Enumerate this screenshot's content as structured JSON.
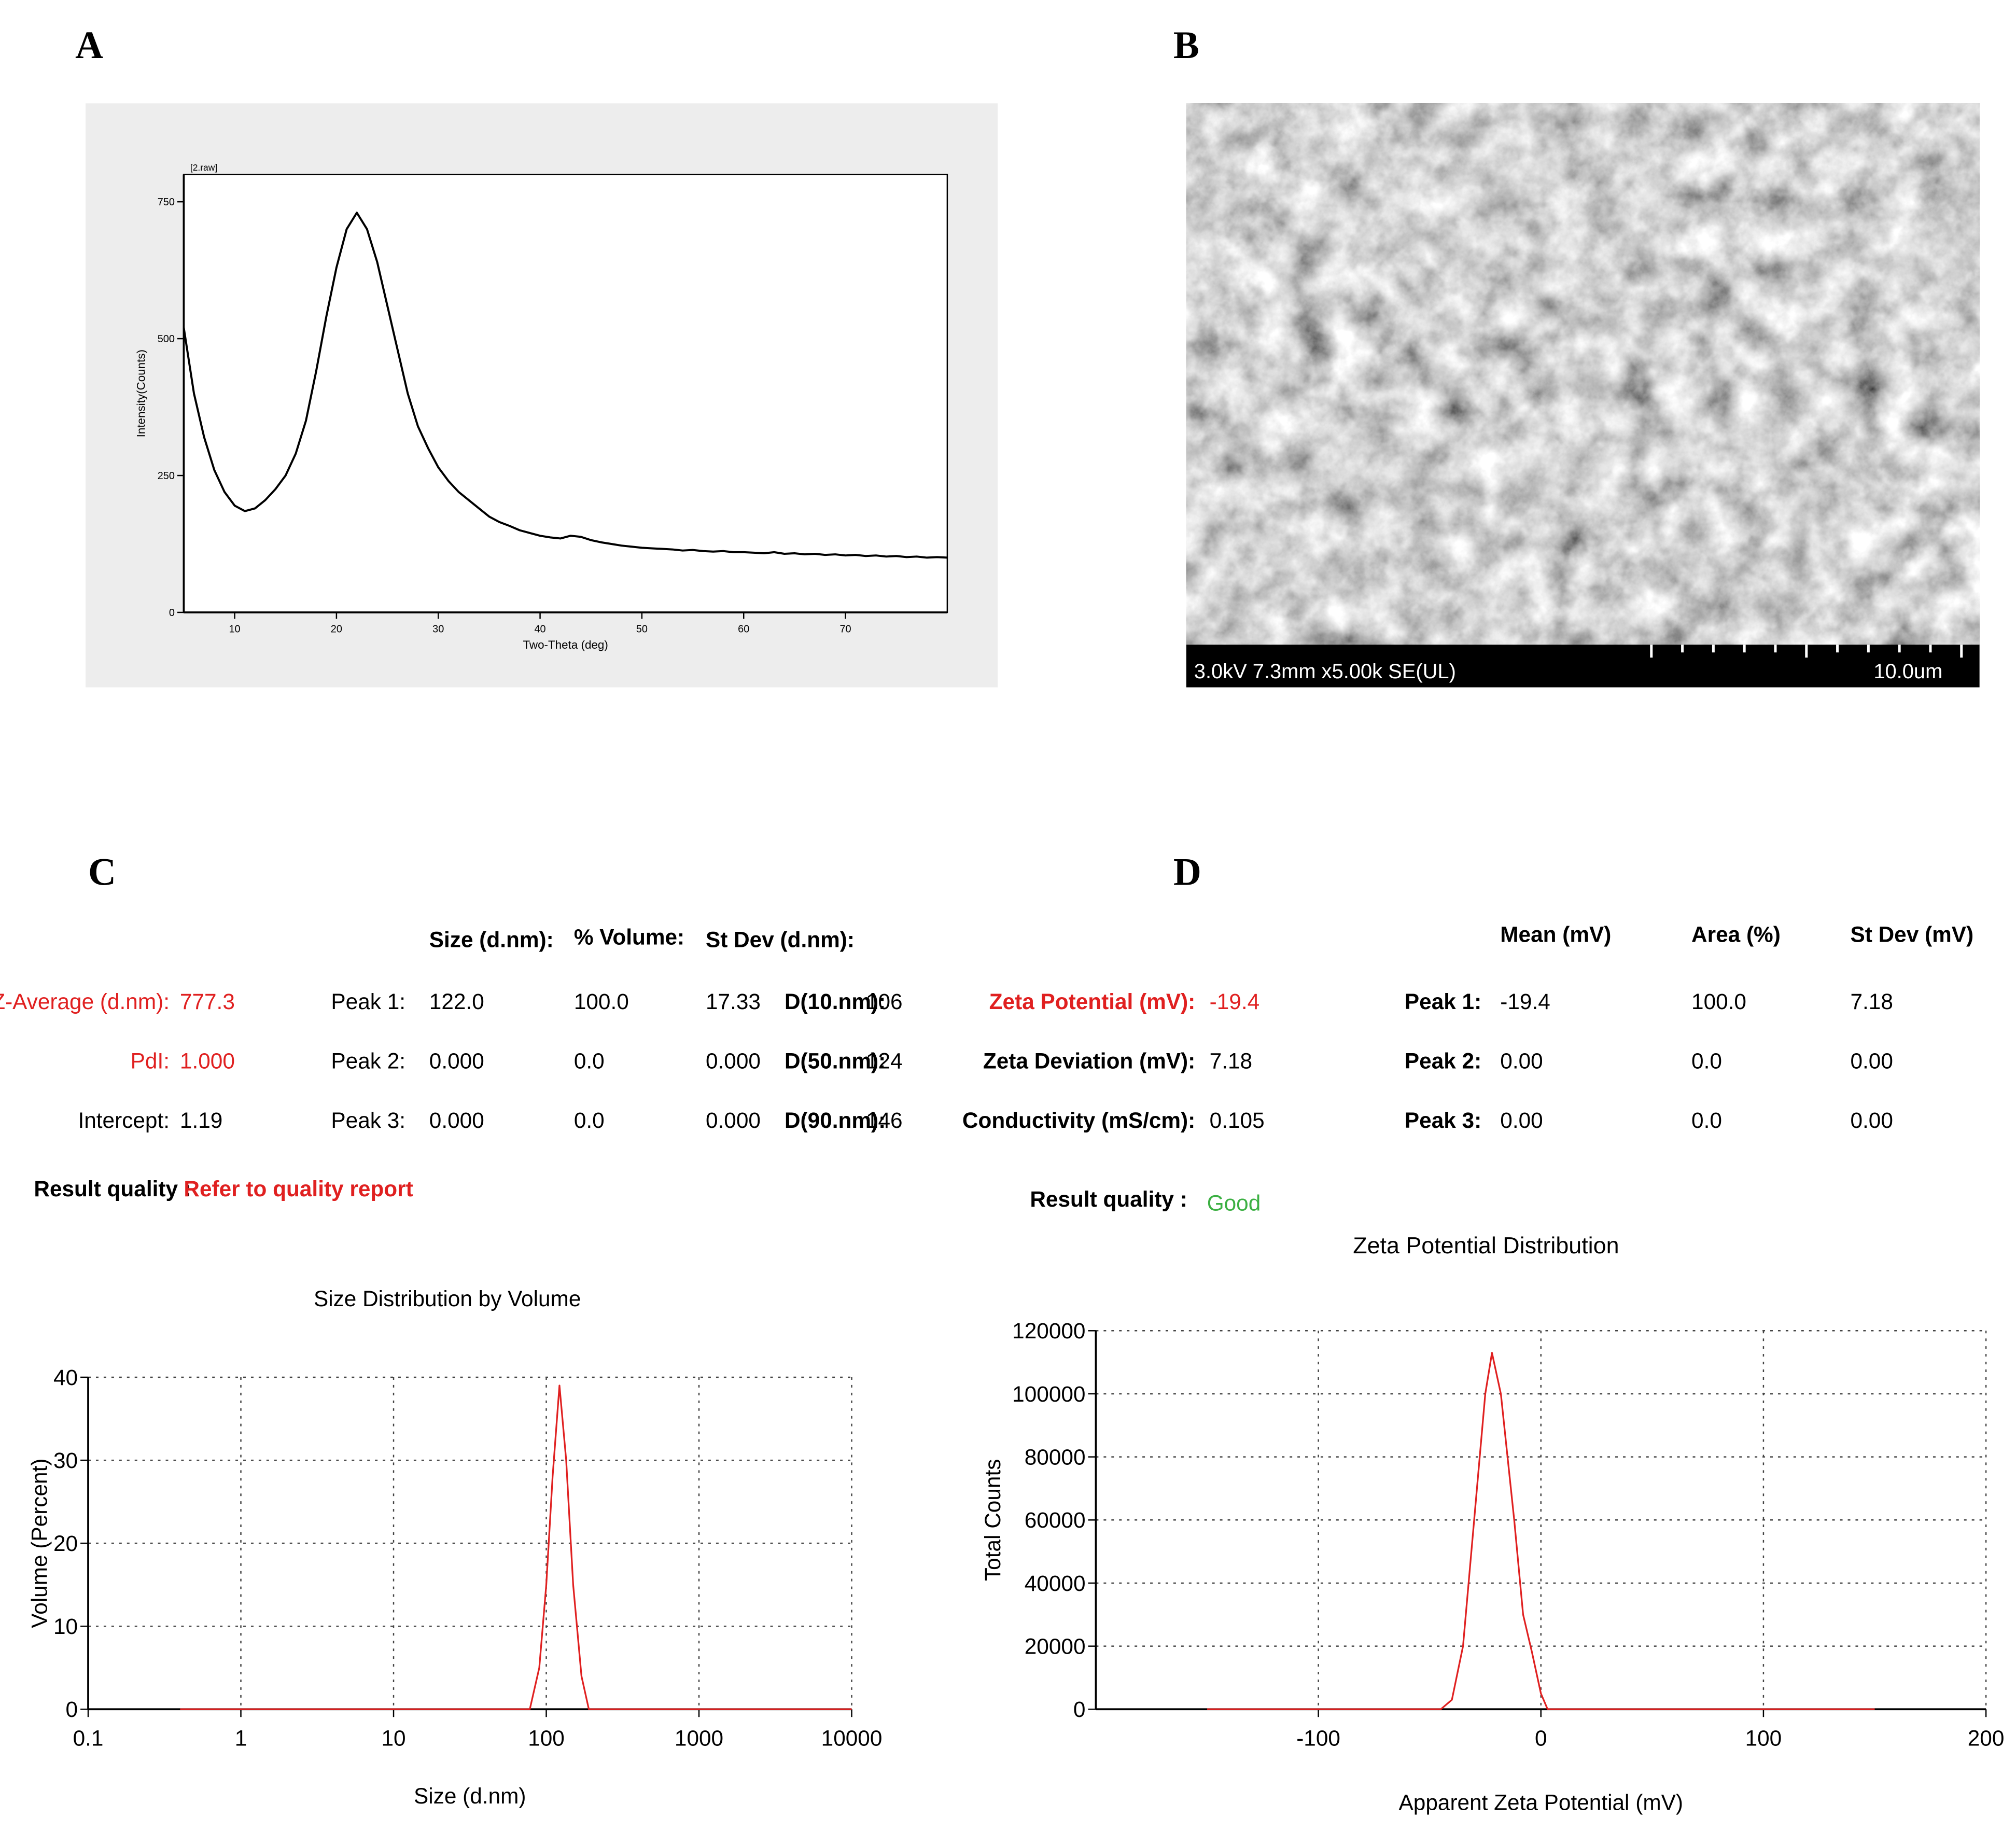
{
  "panels": [
    "A",
    "B",
    "C",
    "D"
  ],
  "chart_data": [
    {
      "type": "line",
      "title": "[2.raw]",
      "xlabel": "Two-Theta (deg)",
      "ylabel": "Intensity(Counts)",
      "color": "#000000",
      "x": [
        5,
        6,
        7,
        8,
        9,
        10,
        11,
        12,
        13,
        14,
        15,
        16,
        17,
        18,
        19,
        20,
        21,
        22,
        23,
        24,
        25,
        26,
        27,
        28,
        29,
        30,
        31,
        32,
        33,
        34,
        35,
        36,
        37,
        38,
        39,
        40,
        41,
        42,
        43,
        44,
        45,
        46,
        47,
        48,
        49,
        50,
        51,
        52,
        53,
        54,
        55,
        56,
        57,
        58,
        59,
        60,
        61,
        62,
        63,
        64,
        65,
        66,
        67,
        68,
        69,
        70,
        71,
        72,
        73,
        74,
        75,
        76,
        77,
        78,
        79,
        80
      ],
      "values": [
        520,
        400,
        320,
        260,
        220,
        195,
        185,
        190,
        205,
        225,
        250,
        290,
        350,
        440,
        540,
        630,
        700,
        730,
        700,
        640,
        560,
        480,
        400,
        340,
        300,
        265,
        240,
        220,
        205,
        190,
        175,
        165,
        158,
        150,
        145,
        140,
        137,
        135,
        140,
        138,
        132,
        128,
        125,
        122,
        120,
        118,
        117,
        116,
        115,
        113,
        114,
        112,
        111,
        112,
        110,
        110,
        109,
        108,
        110,
        107,
        108,
        106,
        107,
        105,
        106,
        104,
        105,
        103,
        104,
        102,
        103,
        101,
        102,
        100,
        101,
        100
      ],
      "xlim": [
        5,
        80
      ],
      "xticks": [
        10,
        20,
        30,
        40,
        50,
        60,
        70
      ],
      "ylim": [
        0,
        800
      ],
      "yticks": [
        0,
        250,
        500,
        750
      ],
      "grid": false
    },
    {
      "type": "line",
      "title": "Size Distribution by Volume",
      "xlabel": "Size (d.nm)",
      "ylabel": "Volume (Percent)",
      "color": "#e02020",
      "xscale": "log",
      "x": [
        0.4,
        78,
        90,
        100,
        110,
        122,
        135,
        150,
        170,
        190,
        10000
      ],
      "values": [
        0,
        0,
        5,
        15,
        28,
        39,
        30,
        15,
        4,
        0,
        0
      ],
      "xlim": [
        0.1,
        10000
      ],
      "xticks": [
        0.1,
        1,
        10,
        100,
        1000,
        10000
      ],
      "ylim": [
        0,
        40
      ],
      "yticks": [
        0,
        10,
        20,
        30,
        40
      ],
      "grid": true
    },
    {
      "type": "line",
      "title": "Zeta Potential Distribution",
      "xlabel": "Apparent Zeta Potential (mV)",
      "ylabel": "Total Counts",
      "color": "#e02020",
      "x": [
        -150,
        -45,
        -40,
        -35,
        -30,
        -25,
        -22,
        -18,
        -12,
        -8,
        -4,
        0,
        3,
        150
      ],
      "values": [
        0,
        0,
        3000,
        20000,
        60000,
        100000,
        113000,
        100000,
        60000,
        30000,
        18000,
        5000,
        0,
        0
      ],
      "xlim": [
        -200,
        200
      ],
      "xticks": [
        -100,
        0,
        100,
        200
      ],
      "ylim": [
        0,
        120000
      ],
      "yticks": [
        0,
        20000,
        40000,
        60000,
        80000,
        100000,
        120000
      ],
      "grid": true
    }
  ],
  "sem": {
    "caption": "3.0kV 7.3mm x5.00k SE(UL)",
    "scale": "10.0um"
  },
  "size_results": {
    "headers": [
      "Size (d.nm):",
      "% Volume:",
      "St Dev (d.nm):"
    ],
    "summary": [
      [
        "Z-Average (d.nm):",
        "777.3"
      ],
      [
        "PdI:",
        "1.000"
      ],
      [
        "Intercept:",
        "1.19"
      ]
    ],
    "peaks": [
      [
        "Peak 1:",
        "122.0",
        "100.0",
        "17.33"
      ],
      [
        "Peak 2:",
        "0.000",
        "0.0",
        "0.000"
      ],
      [
        "Peak 3:",
        "0.000",
        "0.0",
        "0.000"
      ]
    ],
    "d_values": [
      [
        "D(10.nm):",
        "106"
      ],
      [
        "D(50.nm):",
        "124"
      ],
      [
        "D(90.nm):",
        "146"
      ]
    ],
    "quality_label": "Result quality :",
    "quality": "Refer to quality report"
  },
  "zeta_results": {
    "headers": [
      "Mean (mV)",
      "Area (%)",
      "St Dev (mV)"
    ],
    "summary": [
      [
        "Zeta Potential (mV):",
        "-19.4"
      ],
      [
        "Zeta Deviation (mV):",
        "7.18"
      ],
      [
        "Conductivity (mS/cm):",
        "0.105"
      ]
    ],
    "peaks": [
      [
        "Peak 1:",
        "-19.4",
        "100.0",
        "7.18"
      ],
      [
        "Peak 2:",
        "0.00",
        "0.0",
        "0.00"
      ],
      [
        "Peak 3:",
        "0.00",
        "0.0",
        "0.00"
      ]
    ],
    "quality_label": "Result quality :",
    "quality": "Good"
  }
}
